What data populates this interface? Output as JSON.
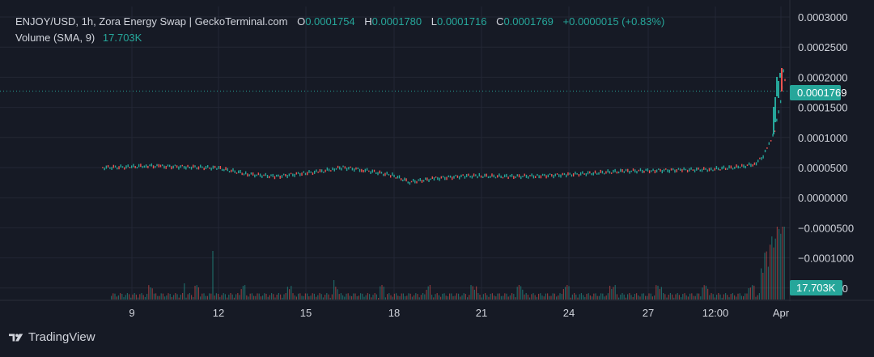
{
  "legend": {
    "symbol": "ENJOY/USD, 1h, Zora Energy Swap | GeckoTerminal.com",
    "o_label": "O",
    "o_value": "0.0001754",
    "h_label": "H",
    "h_value": "0.0001780",
    "l_label": "L",
    "l_value": "0.0001716",
    "c_label": "C",
    "c_value": "0.0001769",
    "change": "+0.0000015 (+0.83%)",
    "volume_label": "Volume (SMA, 9)",
    "volume_value": "17.703K"
  },
  "badges": {
    "last_price": "0.0001769",
    "last_volume": "17.703K"
  },
  "watermark": {
    "text": "TradingView",
    "icon": "tradingview-logo-icon"
  },
  "colors": {
    "background": "#161a25",
    "grid": "#232735",
    "up": "#26a69a",
    "down": "#ef5350",
    "text": "#d1d4dc",
    "last_price_line": "#26a69a"
  },
  "chart_data": {
    "type": "candlestick",
    "title": "ENJOY/USD, 1h, Zora Energy Swap | GeckoTerminal.com",
    "y_tick_labels": [
      "0.0003000",
      "0.0002500",
      "0.0002000",
      "0.0001500",
      "0.0001000",
      "0.0000500",
      "0.0000000",
      "−0.0000500",
      "−0.0001000",
      "−0.000150"
    ],
    "y_ticks": [
      0.0003,
      0.00025,
      0.0002,
      0.00015,
      0.0001,
      5e-05,
      0,
      -5e-05,
      -0.0001,
      -0.00015
    ],
    "x_tick_labels": [
      "9",
      "12",
      "15",
      "18",
      "21",
      "24",
      "27",
      "12:00",
      "Apr"
    ],
    "ylim": [
      -0.000155,
      0.000315
    ],
    "grid": true,
    "last_close": 0.0001769,
    "price_series": {
      "name": "ENJOY/USD",
      "x": [
        "8.0",
        "9.0",
        "9.5",
        "10.0",
        "11.0",
        "12.0",
        "13.0",
        "14.0",
        "15.0",
        "15.5",
        "16.0",
        "16.3",
        "17.0",
        "18.0",
        "18.6",
        "19.5",
        "20.5",
        "21.0",
        "22.0",
        "23.0",
        "24.0",
        "25.0",
        "26.0",
        "27.0",
        "28.0",
        "29.0",
        "30.0",
        "30.5",
        "30.8",
        "31.0",
        "31.2",
        "31.4",
        "31.5",
        "Apr 1"
      ],
      "close": [
        5e-05,
        5.1e-05,
        5.3e-05,
        5.2e-05,
        5.1e-05,
        4.9e-05,
        3.9e-05,
        3.5e-05,
        4.1e-05,
        4.3e-05,
        4.8e-05,
        5e-05,
        4.6e-05,
        3.7e-05,
        2.6e-05,
        3.2e-05,
        3.6e-05,
        3.6e-05,
        3.5e-05,
        3.6e-05,
        3.8e-05,
        4.1e-05,
        4.4e-05,
        4.5e-05,
        4.6e-05,
        4.7e-05,
        5.1e-05,
        5.6e-05,
        6.8e-05,
        9e-05,
        0.00011,
        0.00016,
        0.00021,
        0.0001769
      ]
    },
    "volume_series": {
      "name": "Volume (SMA, 9)",
      "last_value": "17.703K"
    }
  }
}
